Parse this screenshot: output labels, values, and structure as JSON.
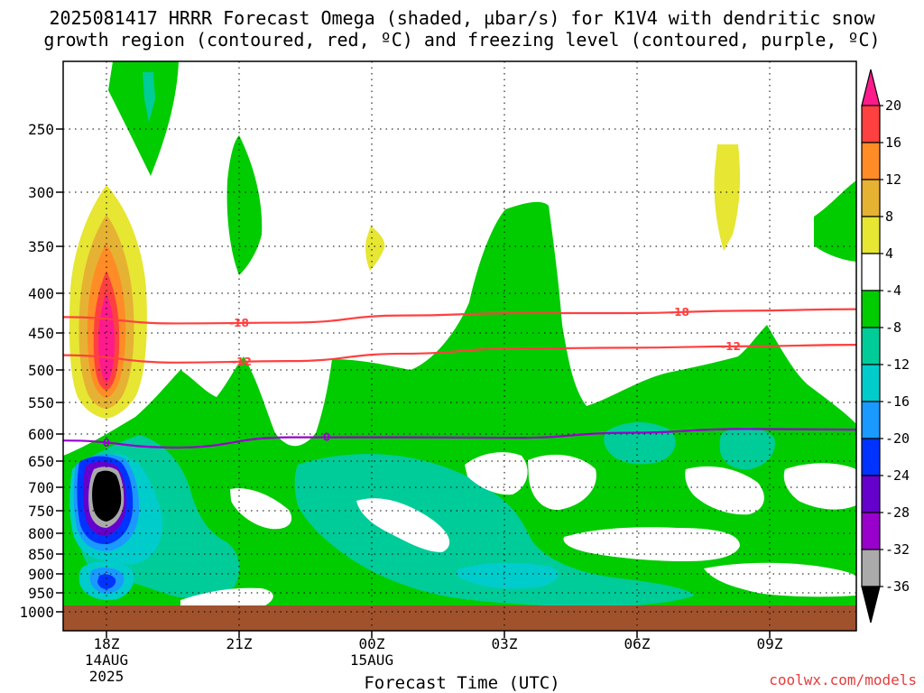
{
  "title": {
    "line1": "2025081417 HRRR Forecast Omega (shaded, µbar/s) for K1V4 with dendritic snow",
    "line2": "growth region (contoured, red, ºC) and freezing level (contoured, purple, ºC)"
  },
  "xlabel": "Forecast Time (UTC)",
  "credit": "coolwx.com/models",
  "colors": {
    "green": "#00cc00",
    "teal": "#00cc99",
    "cyan": "#00cccc",
    "blue_light": "#1a99ff",
    "blue": "#0033ff",
    "purple_dark": "#6600cc",
    "purple": "#9900cc",
    "gray": "#aaaaaa",
    "black": "#000000",
    "yellow": "#e6e633",
    "gold": "#e6b233",
    "orange": "#ff8c26",
    "red": "#ff4040",
    "magenta": "#ff1a8c",
    "ground": "#a0522d",
    "dgz_contour": "#ff4040",
    "freezing_contour": "#9900cc"
  },
  "chart_data": {
    "type": "heatmap",
    "title": "2025081417 HRRR Forecast Omega (shaded, µbar/s) for K1V4 with dendritic snow growth region (contoured, red, ºC) and freezing level (contoured, purple, ºC)",
    "xlabel": "Forecast Time (UTC)",
    "ylabel": "",
    "y_ticks": [
      "250",
      "300",
      "350",
      "400",
      "450",
      "500",
      "550",
      "600",
      "650",
      "700",
      "750",
      "800",
      "850",
      "900",
      "950",
      "1000"
    ],
    "x_ticks": [
      {
        "label": "18Z",
        "sub1": "14AUG",
        "sub2": "2025"
      },
      {
        "label": "21Z",
        "sub1": "",
        "sub2": ""
      },
      {
        "label": "00Z",
        "sub1": "15AUG",
        "sub2": ""
      },
      {
        "label": "03Z",
        "sub1": "",
        "sub2": ""
      },
      {
        "label": "06Z",
        "sub1": "",
        "sub2": ""
      },
      {
        "label": "09Z",
        "sub1": "",
        "sub2": ""
      }
    ],
    "colorbar_labels": [
      "20",
      "16",
      "12",
      "8",
      "4",
      "-4",
      "-8",
      "-12",
      "-16",
      "-20",
      "-24",
      "-28",
      "-32",
      "-36"
    ],
    "contours": [
      {
        "label": "-18",
        "color": "red",
        "pressure_hpa": [
          430,
          438,
          437,
          428,
          425,
          425,
          422,
          420
        ]
      },
      {
        "label": "-12",
        "color": "red",
        "pressure_hpa": [
          480,
          490,
          488,
          478,
          471,
          470,
          468,
          466
        ]
      },
      {
        "label": "0",
        "color": "purple",
        "pressure_hpa": [
          612,
          625,
          606,
          606,
          607,
          598,
          592,
          593
        ]
      }
    ],
    "min_omega_location": {
      "time": "18Z",
      "pressure_hpa": 710,
      "omega": "-36"
    },
    "max_omega_location": {
      "time": "18Z",
      "pressure_hpa": 450,
      "omega": "20"
    }
  }
}
